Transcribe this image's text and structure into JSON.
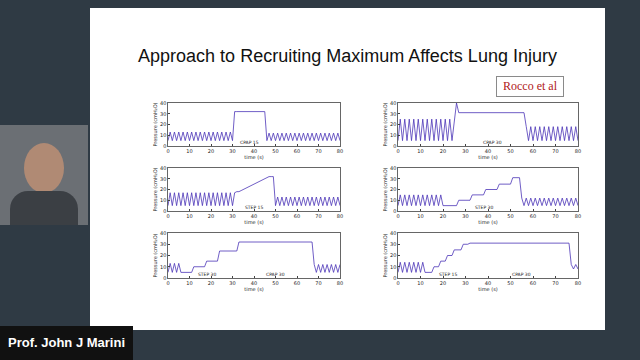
{
  "slide": {
    "title": "Approach to Recruiting Maximum Affects Lung Injury",
    "citation": "Rocco et al",
    "speaker": "Prof. John J Marini"
  },
  "chart_data": [
    {
      "type": "line",
      "xlabel": "time (s)",
      "ylabel": "Pressure (cmH₂O)",
      "color": "#4b35b8",
      "grid": false,
      "xlim": [
        0,
        80
      ],
      "xticks": [
        0,
        10,
        20,
        30,
        40,
        50,
        60,
        70,
        80
      ],
      "ylim": [
        0,
        40
      ],
      "yticks": [
        0,
        10,
        20,
        30,
        40
      ],
      "annotations": [
        {
          "text": "CPAP 15",
          "x": 38,
          "y": 3
        }
      ],
      "x": [
        0,
        1,
        2,
        3,
        4,
        5,
        6,
        7,
        8,
        9,
        10,
        11,
        12,
        13,
        14,
        15,
        16,
        17,
        18,
        19,
        20,
        21,
        22,
        23,
        24,
        25,
        26,
        27,
        28,
        29,
        30,
        31,
        32,
        33,
        34,
        35,
        36,
        37,
        38,
        39,
        40,
        41,
        42,
        43,
        44,
        45,
        46,
        47,
        48,
        49,
        50,
        51,
        52,
        53,
        54,
        55,
        56,
        57,
        58,
        59,
        60,
        61,
        62,
        63,
        64,
        65,
        66,
        67,
        68,
        69,
        70,
        71,
        72,
        73,
        74,
        75,
        76,
        77,
        78,
        79,
        80
      ],
      "values": [
        5,
        13,
        5,
        13,
        5,
        13,
        5,
        13,
        5,
        13,
        5,
        13,
        5,
        13,
        5,
        13,
        5,
        13,
        5,
        13,
        5,
        13,
        5,
        13,
        5,
        13,
        5,
        13,
        5,
        13,
        5,
        32,
        32,
        32,
        32,
        32,
        32,
        32,
        32,
        32,
        32,
        32,
        32,
        32,
        32,
        32,
        5,
        12,
        5,
        12,
        5,
        12,
        5,
        12,
        5,
        12,
        5,
        12,
        5,
        12,
        5,
        12,
        5,
        12,
        5,
        12,
        5,
        12,
        5,
        12,
        5,
        12,
        5,
        12,
        5,
        12,
        5,
        12,
        5,
        12,
        5
      ]
    },
    {
      "type": "line",
      "xlabel": "time (s)",
      "ylabel": "Pressure (cmH₂O)",
      "color": "#4b35b8",
      "grid": false,
      "xlim": [
        0,
        80
      ],
      "xticks": [
        0,
        10,
        20,
        30,
        40,
        50,
        60,
        70,
        80
      ],
      "ylim": [
        0,
        40
      ],
      "yticks": [
        0,
        10,
        20,
        30,
        40
      ],
      "annotations": [
        {
          "text": "CPAP 30",
          "x": 42,
          "y": 3
        }
      ],
      "x": [
        0,
        1,
        2,
        3,
        4,
        5,
        6,
        7,
        8,
        9,
        10,
        11,
        12,
        13,
        14,
        15,
        16,
        17,
        18,
        19,
        20,
        21,
        22,
        23,
        24,
        25,
        26,
        27,
        28,
        29,
        30,
        31,
        32,
        33,
        34,
        35,
        36,
        37,
        38,
        39,
        40,
        41,
        42,
        43,
        44,
        45,
        46,
        47,
        48,
        49,
        50,
        51,
        52,
        53,
        54,
        55,
        56,
        57,
        58,
        59,
        60,
        61,
        62,
        63,
        64,
        65,
        66,
        67,
        68,
        69,
        70,
        71,
        72,
        73,
        74,
        75,
        76,
        77,
        78,
        79,
        80
      ],
      "values": [
        5,
        25,
        5,
        25,
        5,
        25,
        5,
        25,
        5,
        25,
        5,
        25,
        5,
        25,
        5,
        25,
        5,
        25,
        5,
        25,
        5,
        25,
        5,
        25,
        5,
        25,
        40,
        31,
        31,
        31,
        31,
        31,
        31,
        31,
        31,
        31,
        31,
        31,
        31,
        31,
        31,
        31,
        31,
        31,
        31,
        31,
        31,
        31,
        31,
        31,
        31,
        31,
        31,
        31,
        31,
        31,
        31,
        18,
        5,
        18,
        5,
        18,
        5,
        18,
        5,
        18,
        5,
        18,
        5,
        18,
        5,
        18,
        5,
        18,
        5,
        18,
        5,
        18,
        5,
        18,
        5
      ]
    },
    {
      "type": "line",
      "xlabel": "time (s)",
      "ylabel": "Pressure (cmH₂O)",
      "color": "#4b35b8",
      "grid": false,
      "xlim": [
        0,
        80
      ],
      "xticks": [
        0,
        10,
        20,
        30,
        40,
        50,
        60,
        70,
        80
      ],
      "ylim": [
        0,
        40
      ],
      "yticks": [
        0,
        10,
        20,
        30,
        40
      ],
      "annotations": [
        {
          "text": "STEP 15",
          "x": 40,
          "y": 3
        }
      ],
      "x": [
        0,
        1,
        2,
        3,
        4,
        5,
        6,
        7,
        8,
        9,
        10,
        11,
        12,
        13,
        14,
        15,
        16,
        17,
        18,
        19,
        20,
        21,
        22,
        23,
        24,
        25,
        26,
        27,
        28,
        29,
        30,
        31,
        32,
        33,
        34,
        35,
        36,
        37,
        38,
        39,
        40,
        41,
        42,
        43,
        44,
        45,
        46,
        47,
        48,
        49,
        50,
        51,
        52,
        53,
        54,
        55,
        56,
        57,
        58,
        59,
        60,
        61,
        62,
        63,
        64,
        65,
        66,
        67,
        68,
        69,
        70,
        71,
        72,
        73,
        74,
        75,
        76,
        77,
        78,
        79,
        80
      ],
      "values": [
        5,
        17,
        5,
        17,
        5,
        17,
        5,
        17,
        5,
        17,
        5,
        17,
        5,
        17,
        5,
        17,
        5,
        17,
        5,
        17,
        5,
        17,
        5,
        17,
        5,
        17,
        5,
        17,
        5,
        17,
        5,
        17,
        18,
        18,
        19,
        20,
        21,
        22,
        23,
        24,
        25,
        26,
        27,
        28,
        29,
        30,
        31,
        32,
        32,
        32,
        5,
        13,
        5,
        13,
        5,
        13,
        5,
        13,
        5,
        13,
        5,
        13,
        5,
        13,
        5,
        13,
        5,
        13,
        5,
        13,
        5,
        13,
        5,
        13,
        5,
        13,
        5,
        13,
        5,
        13,
        5
      ]
    },
    {
      "type": "line",
      "xlabel": "time (s)",
      "ylabel": "Pressure (cmH₂O)",
      "color": "#4b35b8",
      "grid": false,
      "xlim": [
        0,
        80
      ],
      "xticks": [
        0,
        10,
        20,
        30,
        40,
        50,
        60,
        70,
        80
      ],
      "ylim": [
        0,
        40
      ],
      "yticks": [
        0,
        10,
        20,
        30,
        40
      ],
      "annotations": [
        {
          "text": "STEP 30",
          "x": 38,
          "y": 3
        }
      ],
      "x": [
        0,
        1,
        2,
        3,
        4,
        5,
        6,
        7,
        8,
        9,
        10,
        11,
        12,
        13,
        14,
        15,
        16,
        17,
        18,
        19,
        20,
        21,
        22,
        23,
        24,
        25,
        26,
        27,
        28,
        29,
        30,
        31,
        32,
        33,
        34,
        35,
        36,
        37,
        38,
        39,
        40,
        41,
        42,
        43,
        44,
        45,
        46,
        47,
        48,
        49,
        50,
        51,
        52,
        53,
        54,
        55,
        56,
        57,
        58,
        59,
        60,
        61,
        62,
        63,
        64,
        65,
        66,
        67,
        68,
        69,
        70,
        71,
        72,
        73,
        74,
        75,
        76,
        77,
        78,
        79,
        80
      ],
      "values": [
        5,
        15,
        5,
        15,
        5,
        15,
        5,
        15,
        5,
        15,
        5,
        15,
        5,
        15,
        5,
        15,
        5,
        15,
        5,
        15,
        5,
        5,
        5,
        5,
        5,
        5,
        5,
        10,
        10,
        10,
        10,
        10,
        10,
        15,
        15,
        15,
        15,
        15,
        15,
        20,
        20,
        20,
        20,
        20,
        20,
        25,
        25,
        25,
        25,
        25,
        25,
        31,
        31,
        31,
        31,
        12,
        5,
        12,
        5,
        12,
        5,
        12,
        5,
        12,
        5,
        12,
        5,
        12,
        5,
        12,
        5,
        12,
        5,
        12,
        5,
        12,
        5,
        12,
        5,
        12,
        5
      ]
    },
    {
      "type": "line",
      "xlabel": "time (s)",
      "ylabel": "Pressure (cmH₂O)",
      "color": "#4b35b8",
      "grid": false,
      "xlim": [
        0,
        80
      ],
      "xticks": [
        0,
        10,
        20,
        30,
        40,
        50,
        60,
        70,
        80
      ],
      "ylim": [
        0,
        40
      ],
      "yticks": [
        0,
        10,
        20,
        30,
        40
      ],
      "annotations": [
        {
          "text": "STEP 30",
          "x": 18,
          "y": 3
        },
        {
          "text": "CPAP 30",
          "x": 50,
          "y": 3
        }
      ],
      "x": [
        0,
        1,
        2,
        3,
        4,
        5,
        6,
        7,
        8,
        9,
        10,
        11,
        12,
        13,
        14,
        15,
        16,
        17,
        18,
        19,
        20,
        21,
        22,
        23,
        24,
        25,
        26,
        27,
        28,
        29,
        30,
        31,
        32,
        33,
        34,
        35,
        36,
        37,
        38,
        39,
        40,
        41,
        42,
        43,
        44,
        45,
        46,
        47,
        48,
        49,
        50,
        51,
        52,
        53,
        54,
        55,
        56,
        57,
        58,
        59,
        60,
        61,
        62,
        63,
        64,
        65,
        66,
        67,
        68,
        69,
        70,
        71,
        72,
        73,
        74,
        75,
        76,
        77,
        78,
        79,
        80
      ],
      "values": [
        5,
        13,
        5,
        13,
        5,
        13,
        5,
        5,
        5,
        5,
        5,
        5,
        10,
        10,
        10,
        10,
        10,
        10,
        15,
        15,
        15,
        15,
        15,
        15,
        24,
        24,
        24,
        24,
        24,
        24,
        24,
        24,
        24,
        32,
        32,
        32,
        32,
        32,
        32,
        32,
        32,
        32,
        32,
        32,
        32,
        32,
        32,
        32,
        32,
        32,
        32,
        32,
        32,
        32,
        32,
        32,
        32,
        32,
        32,
        32,
        32,
        32,
        32,
        32,
        32,
        32,
        32,
        32,
        12,
        5,
        12,
        5,
        12,
        5,
        12,
        5,
        12,
        5,
        12,
        5,
        12
      ]
    },
    {
      "type": "line",
      "xlabel": "time (s)",
      "ylabel": "Pressure (cmH₂O)",
      "color": "#4b35b8",
      "grid": false,
      "xlim": [
        0,
        80
      ],
      "xticks": [
        0,
        10,
        20,
        30,
        40,
        50,
        60,
        70,
        80
      ],
      "ylim": [
        0,
        40
      ],
      "yticks": [
        0,
        10,
        20,
        30,
        40
      ],
      "annotations": [
        {
          "text": "STEP 15",
          "x": 22,
          "y": 3
        },
        {
          "text": "CPAP 30",
          "x": 55,
          "y": 3
        }
      ],
      "x": [
        0,
        1,
        2,
        3,
        4,
        5,
        6,
        7,
        8,
        9,
        10,
        11,
        12,
        13,
        14,
        15,
        16,
        17,
        18,
        19,
        20,
        21,
        22,
        23,
        24,
        25,
        26,
        27,
        28,
        29,
        30,
        31,
        32,
        33,
        34,
        35,
        36,
        37,
        38,
        39,
        40,
        41,
        42,
        43,
        44,
        45,
        46,
        47,
        48,
        49,
        50,
        51,
        52,
        53,
        54,
        55,
        56,
        57,
        58,
        59,
        60,
        61,
        62,
        63,
        64,
        65,
        66,
        67,
        68,
        69,
        70,
        71,
        72,
        73,
        74,
        75,
        76,
        77,
        78,
        79,
        80
      ],
      "values": [
        5,
        14,
        5,
        14,
        5,
        14,
        5,
        14,
        5,
        14,
        5,
        14,
        5,
        5,
        5,
        5,
        10,
        10,
        10,
        15,
        15,
        15,
        20,
        20,
        20,
        25,
        25,
        25,
        25,
        30,
        30,
        30,
        31,
        31,
        31,
        31,
        31,
        31,
        31,
        31,
        31,
        31,
        31,
        31,
        31,
        31,
        31,
        31,
        31,
        31,
        31,
        31,
        31,
        31,
        31,
        31,
        31,
        31,
        31,
        31,
        31,
        31,
        31,
        31,
        31,
        31,
        31,
        31,
        31,
        31,
        31,
        31,
        31,
        31,
        31,
        31,
        31,
        12,
        8,
        12,
        8
      ]
    }
  ]
}
